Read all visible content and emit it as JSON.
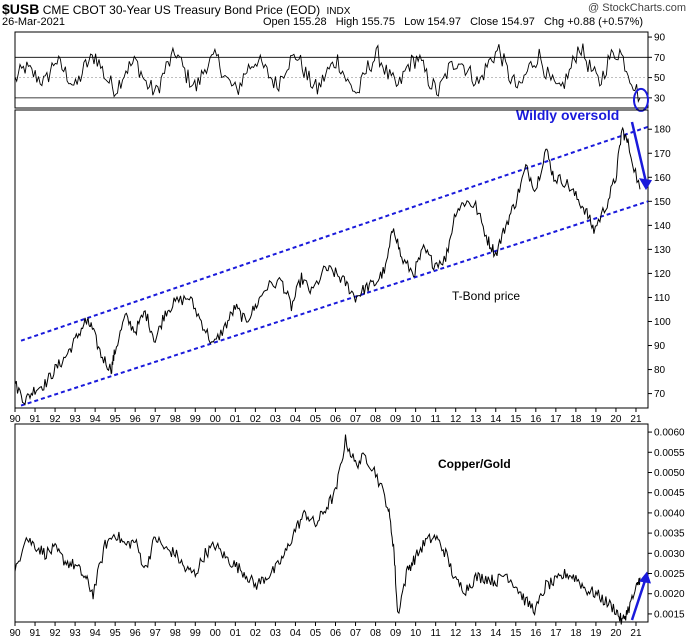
{
  "header": {
    "symbol": "$USB",
    "description": "CME CBOT 30-Year US Treasury Bond Price (EOD)",
    "exchange": "INDX",
    "watermark": "@ StockCharts.com",
    "date": "26-Mar-2021",
    "open_label": "Open",
    "open_value": "155.28",
    "high_label": "High",
    "high_value": "155.75",
    "low_label": "Low",
    "low_value": "154.97",
    "close_label": "Close",
    "close_value": "154.97",
    "chg_label": "Chg",
    "chg_value": "+0.88 (+0.57%)"
  },
  "colors": {
    "price_line": "#000000",
    "annotation": "#1a1adb",
    "grid": "#d9d9d9"
  },
  "chart_data": [
    {
      "type": "line",
      "panel": "RSI",
      "ylim": [
        20,
        95
      ],
      "yticks": [
        30,
        50,
        70,
        90
      ],
      "reference_lines": [
        30,
        70
      ],
      "y": [
        48,
        60,
        52,
        45,
        68,
        55,
        40,
        62,
        72,
        50,
        38,
        58,
        66,
        44,
        35,
        60,
        75,
        52,
        40,
        63,
        70,
        48,
        36,
        58,
        68,
        55,
        42,
        64,
        72,
        50,
        38,
        56,
        68,
        45,
        34,
        60,
        73,
        52,
        40,
        62,
        70,
        48,
        35,
        58,
        68,
        56,
        44,
        65,
        78,
        52,
        38,
        60,
        72,
        48,
        36,
        55,
        82,
        60,
        44,
        70,
        76,
        52,
        30
      ]
    },
    {
      "type": "line",
      "panel": "T-Bond",
      "annotation": "T-Bond price",
      "callout": "Wildly oversold",
      "ylim": [
        64,
        188
      ],
      "yticks": [
        70,
        80,
        90,
        100,
        110,
        120,
        130,
        140,
        150,
        160,
        170,
        180
      ],
      "x": [
        1990.0,
        1990.5,
        1991.0,
        1991.5,
        1992.0,
        1992.5,
        1993.0,
        1993.5,
        1993.8,
        1994.3,
        1994.8,
        1995.0,
        1995.5,
        1996.0,
        1996.5,
        1997.0,
        1997.5,
        1998.0,
        1998.7,
        1999.3,
        1999.9,
        2000.5,
        2001.0,
        2001.5,
        2002.0,
        2002.5,
        2003.3,
        2003.8,
        2004.3,
        2004.8,
        2005.5,
        2006.0,
        2006.5,
        2007.0,
        2007.5,
        2008.0,
        2008.5,
        2008.9,
        2009.3,
        2009.9,
        2010.4,
        2010.9,
        2011.5,
        2012.0,
        2012.5,
        2013.0,
        2013.6,
        2014.0,
        2014.5,
        2015.0,
        2015.5,
        2016.0,
        2016.5,
        2016.9,
        2017.5,
        2018.0,
        2018.5,
        2018.9,
        2019.5,
        2020.0,
        2020.3,
        2020.6,
        2021.2
      ],
      "y": [
        74,
        67,
        72,
        74,
        80,
        85,
        92,
        100,
        98,
        86,
        80,
        88,
        102,
        96,
        104,
        92,
        104,
        108,
        110,
        100,
        90,
        98,
        106,
        100,
        106,
        114,
        117,
        106,
        118,
        112,
        122,
        120,
        116,
        110,
        114,
        116,
        122,
        140,
        126,
        120,
        130,
        124,
        126,
        146,
        150,
        148,
        134,
        128,
        140,
        150,
        164,
        155,
        172,
        160,
        158,
        152,
        146,
        138,
        148,
        160,
        180,
        174,
        155
      ],
      "channel_upper": {
        "x": [
          1990.3,
          2021.6
        ],
        "y": [
          92,
          181
        ]
      },
      "channel_lower": {
        "x": [
          1990.3,
          2021.6
        ],
        "y": [
          65,
          150
        ]
      }
    },
    {
      "type": "line",
      "panel": "Copper/Gold",
      "annotation": "Copper/Gold",
      "ylim": [
        0.0013,
        0.0062
      ],
      "yticks": [
        0.0015,
        0.002,
        0.0025,
        0.003,
        0.0035,
        0.004,
        0.0045,
        0.005,
        0.0055,
        0.006
      ],
      "ytick_labels": [
        "0.0015",
        "0.0020",
        "0.0025",
        "0.0030",
        "0.0035",
        "0.0040",
        "0.0045",
        "0.0050",
        "0.0055",
        "0.0060"
      ],
      "x": [
        1990.0,
        1990.5,
        1991.0,
        1991.5,
        1992.0,
        1992.5,
        1993.0,
        1993.5,
        1993.9,
        1994.5,
        1995.0,
        1995.5,
        1996.0,
        1996.5,
        1997.0,
        1997.5,
        1998.0,
        1998.5,
        1999.0,
        1999.5,
        2000.0,
        2000.5,
        2001.0,
        2001.5,
        2002.0,
        2002.5,
        2003.0,
        2003.5,
        2004.0,
        2004.5,
        2005.0,
        2005.5,
        2006.0,
        2006.5,
        2007.0,
        2007.5,
        2008.0,
        2008.6,
        2008.9,
        2009.1,
        2009.6,
        2010.0,
        2010.5,
        2011.0,
        2011.5,
        2012.0,
        2012.5,
        2013.0,
        2013.5,
        2014.0,
        2014.5,
        2015.0,
        2015.5,
        2016.0,
        2016.5,
        2017.0,
        2017.5,
        2018.0,
        2018.5,
        2019.0,
        2019.5,
        2020.0,
        2020.3,
        2020.6,
        2021.0,
        2021.2
      ],
      "y": [
        0.0025,
        0.0034,
        0.0032,
        0.003,
        0.0031,
        0.0028,
        0.0027,
        0.0024,
        0.002,
        0.0032,
        0.0035,
        0.0032,
        0.0033,
        0.0026,
        0.0034,
        0.0031,
        0.003,
        0.0026,
        0.0025,
        0.003,
        0.0032,
        0.0029,
        0.0027,
        0.0025,
        0.0022,
        0.0024,
        0.0026,
        0.003,
        0.0036,
        0.004,
        0.0037,
        0.0041,
        0.0045,
        0.0058,
        0.0052,
        0.0054,
        0.005,
        0.0042,
        0.0032,
        0.0015,
        0.0026,
        0.0029,
        0.0033,
        0.0034,
        0.003,
        0.0023,
        0.0021,
        0.0024,
        0.0024,
        0.0023,
        0.0025,
        0.0022,
        0.0018,
        0.0016,
        0.0022,
        0.0023,
        0.0025,
        0.0024,
        0.0021,
        0.002,
        0.0018,
        0.0016,
        0.0013,
        0.0016,
        0.0021,
        0.0024
      ]
    }
  ],
  "x_axis": {
    "labels": [
      "90",
      "91",
      "92",
      "93",
      "94",
      "95",
      "96",
      "97",
      "98",
      "99",
      "00",
      "01",
      "02",
      "03",
      "04",
      "05",
      "06",
      "07",
      "08",
      "09",
      "10",
      "11",
      "12",
      "13",
      "14",
      "15",
      "16",
      "17",
      "18",
      "19",
      "20",
      "21"
    ],
    "start_year": 1990
  }
}
